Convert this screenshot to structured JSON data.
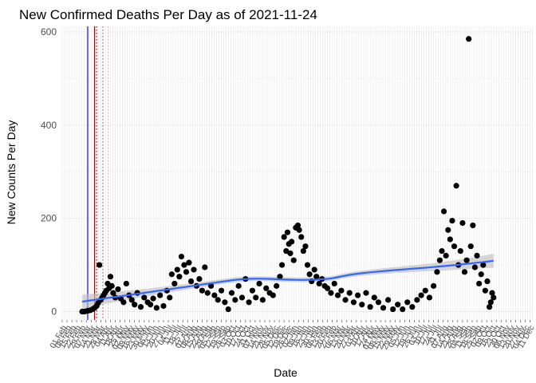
{
  "chart_data": {
    "type": "scatter",
    "title": "New Confirmed Deaths Per Day as of 2021-11-24",
    "xlabel": "Date",
    "ylabel": "New Counts Per Day",
    "xlim": [
      "2020-02-01",
      "2021-12-15"
    ],
    "ylim": [
      -18,
      612
    ],
    "yticks": [
      0,
      200,
      400,
      600
    ],
    "grid": true,
    "legend": "none",
    "x_tick_labels": [
      "01 Feb",
      "08 Feb",
      "15 Feb",
      "22 Feb",
      "29 Feb",
      "07 Mar",
      "14 Mar",
      "21 Mar",
      "28 Mar",
      "04 Apr",
      "11 Apr",
      "18 Apr",
      "25 Apr",
      "02 May",
      "09 May",
      "16 May",
      "23 May",
      "30 May",
      "06 Jun",
      "13 Jun",
      "20 Jun",
      "27 Jun",
      "04 Jul",
      "11 Jul",
      "18 Jul",
      "25 Jul",
      "01 Aug",
      "08 Aug",
      "15 Aug",
      "22 Aug",
      "29 Aug",
      "05 Sep",
      "12 Sep",
      "19 Sep",
      "26 Sep",
      "03 Oct",
      "10 Oct",
      "17 Oct",
      "24 Oct",
      "31 Oct",
      "07 Nov",
      "14 Nov",
      "21 Nov",
      "28 Nov",
      "05 Dec",
      "12 Dec",
      "19 Dec",
      "26 Dec",
      "02 Jan",
      "09 Jan",
      "16 Jan",
      "23 Jan",
      "30 Jan",
      "06 Feb",
      "13 Feb",
      "20 Feb",
      "27 Feb",
      "06 Mar",
      "13 Mar",
      "20 Mar",
      "27 Mar",
      "03 Apr",
      "10 Apr",
      "17 Apr",
      "24 Apr",
      "01 May",
      "08 May",
      "15 May",
      "22 May",
      "29 May",
      "05 Jun",
      "12 Jun",
      "19 Jun",
      "26 Jun",
      "03 Jul",
      "10 Jul",
      "17 Jul",
      "24 Jul",
      "31 Jul",
      "07 Aug",
      "14 Aug",
      "21 Aug",
      "28 Aug",
      "04 Sep",
      "11 Sep",
      "18 Sep",
      "25 Sep",
      "02 Oct",
      "09 Oct",
      "16 Oct",
      "23 Oct",
      "30 Oct",
      "06 Nov",
      "13 Nov",
      "20 Nov",
      "27 Nov",
      "04 Dec",
      "11 Dec"
    ],
    "vertical_lines": [
      {
        "x": "2020-03-09",
        "color": "#0000cc",
        "style": "solid"
      },
      {
        "x": "2020-03-19",
        "color": "#8b0000",
        "style": "solid"
      },
      {
        "x": "2020-03-22",
        "color": "#8b0000",
        "style": "dotted"
      },
      {
        "x": "2020-03-31",
        "color": "#d04040",
        "style": "dotted"
      },
      {
        "x": "2020-04-08",
        "color": "#f4a6a6",
        "style": "dotted"
      }
    ],
    "smooth_color": "#3366ff",
    "ribbon_color": "#bdbdbd",
    "series": [
      {
        "color": "#000000",
        "points": [
          [
            "2020-03-01",
            0
          ],
          [
            "2020-03-04",
            0
          ],
          [
            "2020-03-07",
            1
          ],
          [
            "2020-03-10",
            2
          ],
          [
            "2020-03-13",
            3
          ],
          [
            "2020-03-16",
            5
          ],
          [
            "2020-03-19",
            8
          ],
          [
            "2020-03-22",
            12
          ],
          [
            "2020-03-24",
            18
          ],
          [
            "2020-03-26",
            100
          ],
          [
            "2020-03-28",
            25
          ],
          [
            "2020-03-30",
            30
          ],
          [
            "2020-04-01",
            35
          ],
          [
            "2020-04-03",
            40
          ],
          [
            "2020-04-05",
            45
          ],
          [
            "2020-04-07",
            60
          ],
          [
            "2020-04-09",
            50
          ],
          [
            "2020-04-11",
            75
          ],
          [
            "2020-04-13",
            55
          ],
          [
            "2020-04-15",
            40
          ],
          [
            "2020-04-18",
            30
          ],
          [
            "2020-04-22",
            48
          ],
          [
            "2020-04-26",
            28
          ],
          [
            "2020-04-30",
            20
          ],
          [
            "2020-05-04",
            60
          ],
          [
            "2020-05-08",
            35
          ],
          [
            "2020-05-12",
            25
          ],
          [
            "2020-05-16",
            15
          ],
          [
            "2020-05-20",
            40
          ],
          [
            "2020-05-25",
            10
          ],
          [
            "2020-05-30",
            30
          ],
          [
            "2020-06-04",
            20
          ],
          [
            "2020-06-08",
            15
          ],
          [
            "2020-06-12",
            28
          ],
          [
            "2020-06-17",
            8
          ],
          [
            "2020-06-22",
            35
          ],
          [
            "2020-06-27",
            12
          ],
          [
            "2020-07-02",
            45
          ],
          [
            "2020-07-06",
            30
          ],
          [
            "2020-07-09",
            80
          ],
          [
            "2020-07-13",
            60
          ],
          [
            "2020-07-17",
            90
          ],
          [
            "2020-07-20",
            75
          ],
          [
            "2020-07-23",
            118
          ],
          [
            "2020-07-27",
            100
          ],
          [
            "2020-07-30",
            85
          ],
          [
            "2020-08-03",
            105
          ],
          [
            "2020-08-06",
            65
          ],
          [
            "2020-08-10",
            90
          ],
          [
            "2020-08-14",
            55
          ],
          [
            "2020-08-18",
            70
          ],
          [
            "2020-08-22",
            45
          ],
          [
            "2020-08-26",
            95
          ],
          [
            "2020-08-30",
            40
          ],
          [
            "2020-09-04",
            55
          ],
          [
            "2020-09-09",
            35
          ],
          [
            "2020-09-14",
            25
          ],
          [
            "2020-09-19",
            45
          ],
          [
            "2020-09-24",
            20
          ],
          [
            "2020-09-29",
            5
          ],
          [
            "2020-10-04",
            40
          ],
          [
            "2020-10-09",
            25
          ],
          [
            "2020-10-14",
            55
          ],
          [
            "2020-10-19",
            30
          ],
          [
            "2020-10-24",
            70
          ],
          [
            "2020-10-29",
            20
          ],
          [
            "2020-11-03",
            45
          ],
          [
            "2020-11-08",
            30
          ],
          [
            "2020-11-13",
            60
          ],
          [
            "2020-11-18",
            25
          ],
          [
            "2020-11-23",
            50
          ],
          [
            "2020-11-28",
            40
          ],
          [
            "2020-12-03",
            35
          ],
          [
            "2020-12-08",
            55
          ],
          [
            "2020-12-13",
            75
          ],
          [
            "2020-12-16",
            100
          ],
          [
            "2020-12-19",
            160
          ],
          [
            "2020-12-22",
            130
          ],
          [
            "2020-12-24",
            170
          ],
          [
            "2020-12-26",
            145
          ],
          [
            "2020-12-28",
            125
          ],
          [
            "2020-12-30",
            150
          ],
          [
            "2021-01-02",
            110
          ],
          [
            "2021-01-05",
            180
          ],
          [
            "2021-01-08",
            185
          ],
          [
            "2021-01-10",
            175
          ],
          [
            "2021-01-13",
            160
          ],
          [
            "2021-01-16",
            130
          ],
          [
            "2021-01-19",
            140
          ],
          [
            "2021-01-22",
            100
          ],
          [
            "2021-01-25",
            80
          ],
          [
            "2021-01-28",
            65
          ],
          [
            "2021-02-01",
            90
          ],
          [
            "2021-02-04",
            75
          ],
          [
            "2021-02-08",
            60
          ],
          [
            "2021-02-12",
            70
          ],
          [
            "2021-02-16",
            55
          ],
          [
            "2021-02-20",
            50
          ],
          [
            "2021-02-25",
            40
          ],
          [
            "2021-03-02",
            60
          ],
          [
            "2021-03-07",
            35
          ],
          [
            "2021-03-12",
            45
          ],
          [
            "2021-03-18",
            25
          ],
          [
            "2021-03-24",
            40
          ],
          [
            "2021-03-30",
            20
          ],
          [
            "2021-04-05",
            35
          ],
          [
            "2021-04-11",
            15
          ],
          [
            "2021-04-17",
            40
          ],
          [
            "2021-04-23",
            10
          ],
          [
            "2021-04-29",
            30
          ],
          [
            "2021-05-05",
            20
          ],
          [
            "2021-05-12",
            8
          ],
          [
            "2021-05-19",
            25
          ],
          [
            "2021-05-26",
            5
          ],
          [
            "2021-06-02",
            15
          ],
          [
            "2021-06-09",
            5
          ],
          [
            "2021-06-16",
            20
          ],
          [
            "2021-06-23",
            10
          ],
          [
            "2021-06-30",
            25
          ],
          [
            "2021-07-06",
            35
          ],
          [
            "2021-07-12",
            45
          ],
          [
            "2021-07-18",
            30
          ],
          [
            "2021-07-24",
            55
          ],
          [
            "2021-07-29",
            85
          ],
          [
            "2021-08-02",
            110
          ],
          [
            "2021-08-05",
            130
          ],
          [
            "2021-08-08",
            215
          ],
          [
            "2021-08-11",
            120
          ],
          [
            "2021-08-14",
            175
          ],
          [
            "2021-08-17",
            155
          ],
          [
            "2021-08-20",
            195
          ],
          [
            "2021-08-23",
            140
          ],
          [
            "2021-08-26",
            270
          ],
          [
            "2021-08-29",
            100
          ],
          [
            "2021-09-01",
            130
          ],
          [
            "2021-09-04",
            190
          ],
          [
            "2021-09-07",
            85
          ],
          [
            "2021-09-10",
            110
          ],
          [
            "2021-09-13",
            585
          ],
          [
            "2021-09-16",
            140
          ],
          [
            "2021-09-19",
            185
          ],
          [
            "2021-09-22",
            95
          ],
          [
            "2021-09-25",
            120
          ],
          [
            "2021-09-28",
            60
          ],
          [
            "2021-10-01",
            80
          ],
          [
            "2021-10-04",
            100
          ],
          [
            "2021-10-07",
            45
          ],
          [
            "2021-10-10",
            65
          ],
          [
            "2021-10-13",
            10
          ],
          [
            "2021-10-15",
            20
          ],
          [
            "2021-10-17",
            40
          ],
          [
            "2021-10-19",
            30
          ]
        ]
      }
    ]
  }
}
